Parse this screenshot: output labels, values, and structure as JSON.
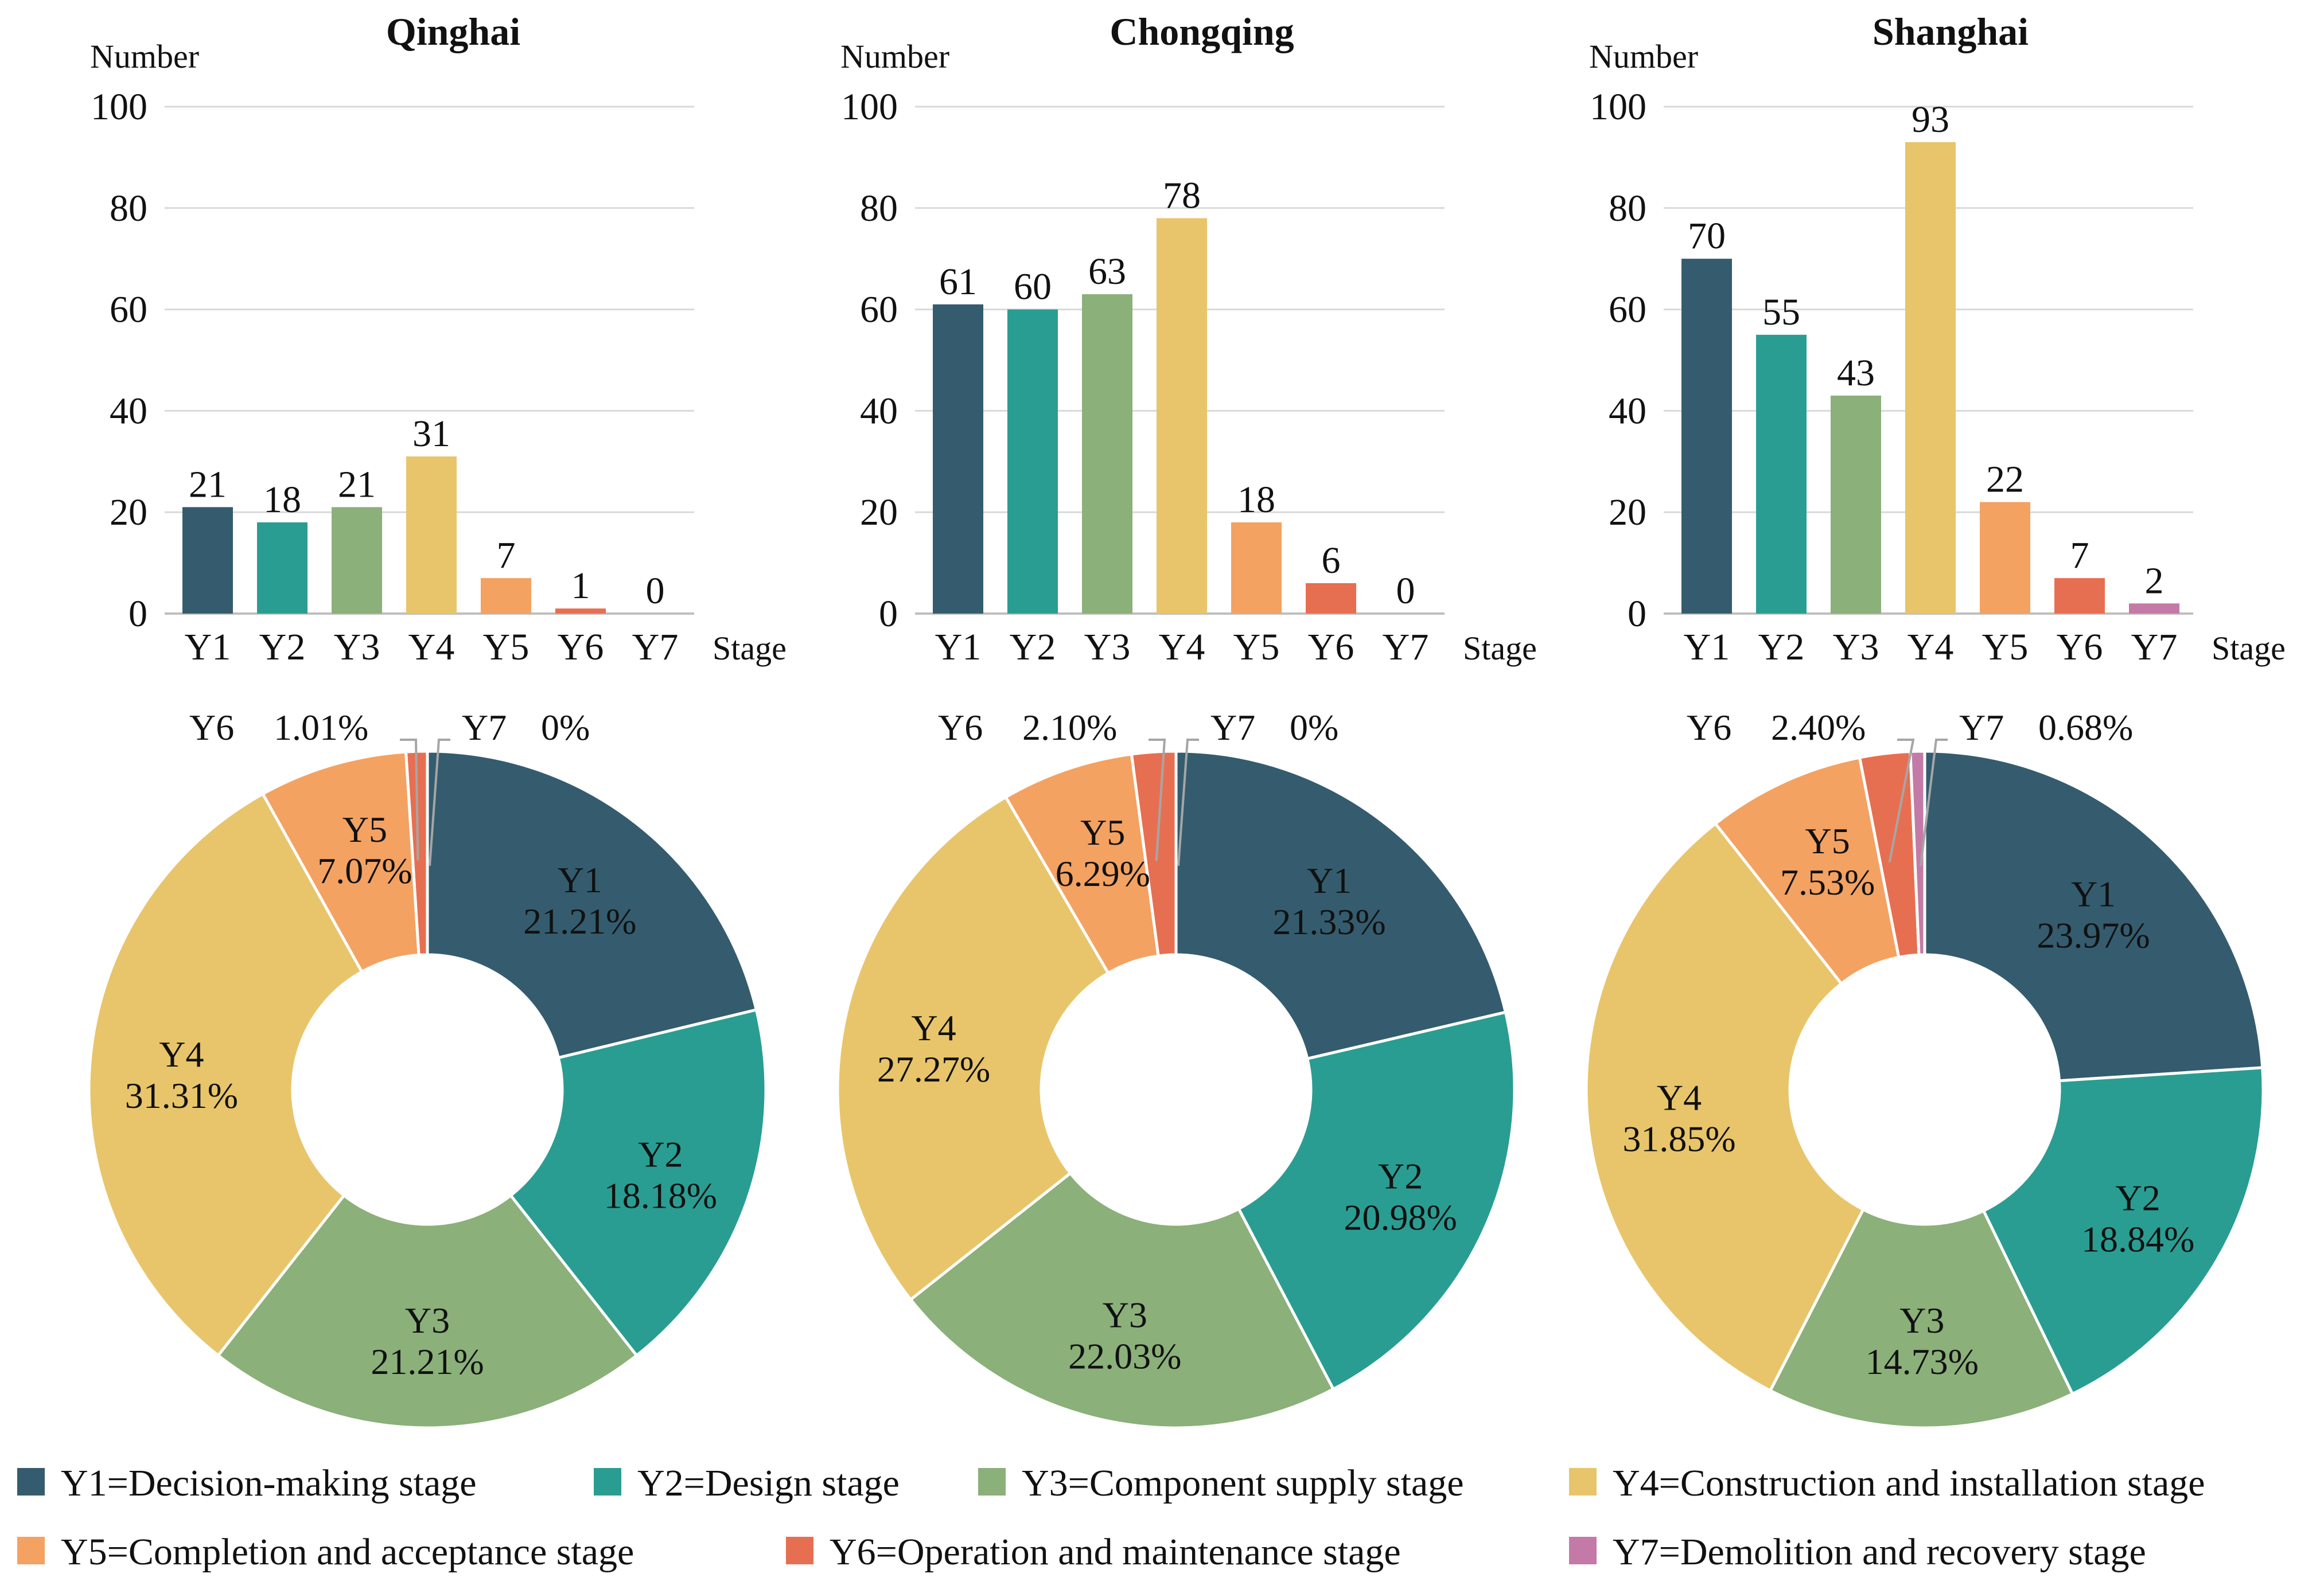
{
  "colors": {
    "Y1": "#345c6e",
    "Y2": "#2a9d92",
    "Y3": "#8bb07a",
    "Y4": "#e8c56b",
    "Y5": "#f3a262",
    "Y6": "#e76f51",
    "Y7": "#c47aa6",
    "grid": "#d9d9d9",
    "axis": "#bfbfbf",
    "text": "#111111",
    "pie_label": "#ffffff",
    "leader": "#a6a6a6"
  },
  "chart_data": [
    {
      "type": "bar",
      "title": "Qinghai",
      "ylabel": "Number",
      "xlabel": "Stage",
      "ylim": [
        0,
        100
      ],
      "yticks": [
        0,
        20,
        40,
        60,
        80,
        100
      ],
      "categories": [
        "Y1",
        "Y2",
        "Y3",
        "Y4",
        "Y5",
        "Y6",
        "Y7"
      ],
      "values": [
        21,
        18,
        21,
        31,
        7,
        1,
        0
      ],
      "data_labels": [
        "21",
        "18",
        "21",
        "31",
        "7",
        "1",
        "0"
      ],
      "grid": true
    },
    {
      "type": "bar",
      "title": "Chongqing",
      "ylabel": "Number",
      "xlabel": "Stage",
      "ylim": [
        0,
        100
      ],
      "yticks": [
        0,
        20,
        40,
        60,
        80,
        100
      ],
      "categories": [
        "Y1",
        "Y2",
        "Y3",
        "Y4",
        "Y5",
        "Y6",
        "Y7"
      ],
      "values": [
        61,
        60,
        63,
        78,
        18,
        6,
        0
      ],
      "data_labels": [
        "61",
        "60",
        "63",
        "78",
        "18",
        "6",
        "0"
      ],
      "grid": true
    },
    {
      "type": "bar",
      "title": "Shanghai",
      "ylabel": "Number",
      "xlabel": "Stage",
      "ylim": [
        0,
        100
      ],
      "yticks": [
        0,
        20,
        40,
        60,
        80,
        100
      ],
      "categories": [
        "Y1",
        "Y2",
        "Y3",
        "Y4",
        "Y5",
        "Y6",
        "Y7"
      ],
      "values": [
        70,
        55,
        43,
        93,
        22,
        7,
        2
      ],
      "data_labels": [
        "70",
        "55",
        "43",
        "93",
        "22",
        "7",
        "2"
      ],
      "grid": true
    },
    {
      "type": "pie",
      "region": "Qinghai",
      "donut": true,
      "categories": [
        "Y1",
        "Y2",
        "Y3",
        "Y4",
        "Y5",
        "Y6",
        "Y7"
      ],
      "values": [
        21.21,
        18.18,
        21.21,
        31.31,
        7.07,
        1.01,
        0
      ],
      "labels": [
        "21.21%",
        "18.18%",
        "21.21%",
        "31.31%",
        "7.07%",
        "1.01%",
        "0%"
      ]
    },
    {
      "type": "pie",
      "region": "Chongqing",
      "donut": true,
      "categories": [
        "Y1",
        "Y2",
        "Y3",
        "Y4",
        "Y5",
        "Y6",
        "Y7"
      ],
      "values": [
        21.33,
        20.98,
        22.03,
        27.27,
        6.29,
        2.1,
        0
      ],
      "labels": [
        "21.33%",
        "20.98%",
        "22.03%",
        "27.27%",
        "6.29%",
        "2.10%",
        "0%"
      ]
    },
    {
      "type": "pie",
      "region": "Shanghai",
      "donut": true,
      "categories": [
        "Y1",
        "Y2",
        "Y3",
        "Y4",
        "Y5",
        "Y6",
        "Y7"
      ],
      "values": [
        23.97,
        18.84,
        14.73,
        31.85,
        7.53,
        2.4,
        0.68
      ],
      "labels": [
        "23.97%",
        "18.84%",
        "14.73%",
        "31.85%",
        "7.53%",
        "2.40%",
        "0.68%"
      ]
    }
  ],
  "legend": {
    "placement": "bottom",
    "items": [
      {
        "key": "Y1",
        "label": "Y1=Decision-making stage"
      },
      {
        "key": "Y2",
        "label": "Y2=Design stage"
      },
      {
        "key": "Y3",
        "label": "Y3=Component supply stage"
      },
      {
        "key": "Y4",
        "label": "Y4=Construction and installation stage"
      },
      {
        "key": "Y5",
        "label": "Y5=Completion and acceptance stage"
      },
      {
        "key": "Y6",
        "label": "Y6=Operation and maintenance stage"
      },
      {
        "key": "Y7",
        "label": "Y7=Demolition and recovery stage"
      }
    ]
  }
}
